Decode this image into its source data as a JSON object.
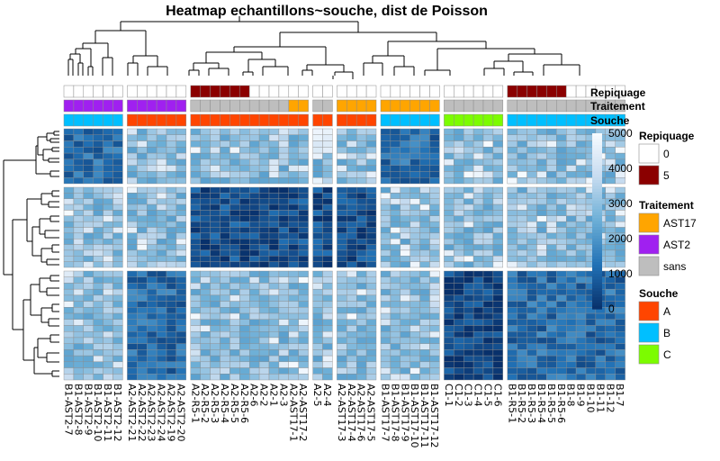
{
  "chart_data": {
    "type": "heatmap",
    "title": "Heatmap echantillons~souche, dist de Poisson",
    "colorbar": {
      "ticks": [
        5000,
        4000,
        3000,
        2000,
        1000,
        0
      ],
      "colors": [
        "#08306b",
        "#2171b5",
        "#6baed6",
        "#c6dbef",
        "#f7fbff"
      ]
    },
    "column_groups": [
      {
        "columns": [
          "B1-AST2-7",
          "B1-AST2-8",
          "B1-AST2-9",
          "B1-AST2-10",
          "B1-AST2-11",
          "B1-AST2-12"
        ],
        "repiquage": [
          "0",
          "0",
          "0",
          "0",
          "0",
          "0"
        ],
        "traitement": "AST2",
        "souche": "B"
      },
      {
        "columns": [
          "A2-AST2-21",
          "A2-AST2-22",
          "A2-AST2-23",
          "A2-AST2-24",
          "A2-AST2-19",
          "A2-AST2-20"
        ],
        "repiquage": [
          "0",
          "0",
          "0",
          "0",
          "0",
          "0"
        ],
        "traitement": "AST2",
        "souche": "A"
      },
      {
        "columns": [
          "A2-R5-1",
          "A2-R5-2",
          "A2-R5-3",
          "A2-R5-4",
          "A2-R5-5",
          "A2-R5-6",
          "A2-6",
          "A2-2",
          "A2-1",
          "A2-3",
          "A2-AST17-1",
          "A2-AST17-2"
        ],
        "repiquage": [
          "5",
          "5",
          "5",
          "5",
          "5",
          "5",
          "0",
          "0",
          "0",
          "0",
          "0",
          "0"
        ],
        "traitement": [
          "sans",
          "sans",
          "sans",
          "sans",
          "sans",
          "sans",
          "sans",
          "sans",
          "sans",
          "sans",
          "AST17",
          "AST17"
        ],
        "souche": "A"
      },
      {
        "columns": [
          "A2-5",
          "A2-4"
        ],
        "repiquage": [
          "0",
          "0"
        ],
        "traitement": "sans",
        "souche": "A"
      },
      {
        "columns": [
          "A2-AST17-3",
          "A2-AST17-4",
          "A2-AST17-6",
          "A2-AST17-5"
        ],
        "repiquage": [
          "0",
          "0",
          "0",
          "0"
        ],
        "traitement": "AST17",
        "souche": "A"
      },
      {
        "columns": [
          "B1-AST17-7",
          "B1-AST17-8",
          "B1-AST17-9",
          "B1-AST17-10",
          "B1-AST17-11",
          "B1-AST17-12"
        ],
        "repiquage": [
          "0",
          "0",
          "0",
          "0",
          "0",
          "0"
        ],
        "traitement": "AST17",
        "souche": "B"
      },
      {
        "columns": [
          "C1-1",
          "C1-2",
          "C1-3",
          "C1-4",
          "C1-5",
          "C1-6"
        ],
        "repiquage": [
          "0",
          "0",
          "0",
          "0",
          "0",
          "0"
        ],
        "traitement": "sans",
        "souche": "C"
      },
      {
        "columns": [
          "B1-R5-1",
          "B1-R5-2",
          "B1-R5-3",
          "B1-R5-4",
          "B1-R5-5",
          "B1-R5-6",
          "B1-8",
          "B1-9",
          "B1-10",
          "B1-11",
          "B1-12",
          "B1-7"
        ],
        "repiquage": [
          "5",
          "5",
          "5",
          "5",
          "5",
          "5",
          "0",
          "0",
          "0",
          "0",
          "0",
          "0"
        ],
        "traitement": "sans",
        "souche": "B"
      }
    ],
    "row_groups": [
      {
        "rows": 9,
        "similar_groups": [
          0,
          5
        ]
      },
      {
        "rows": 14,
        "similar_groups": [
          2,
          3,
          4
        ]
      },
      {
        "rows": 18,
        "similar_groups": [
          1,
          6,
          7
        ]
      }
    ]
  },
  "annotations": {
    "labels": [
      "Repiquage",
      "Traitement",
      "Souche"
    ],
    "colors": {
      "Repiquage": {
        "0": "#ffffff",
        "5": "#8b0000"
      },
      "Traitement": {
        "AST17": "#ffa500",
        "AST2": "#a020f0",
        "sans": "#bebebe"
      },
      "Souche": {
        "A": "#ff4500",
        "B": "#00bfff",
        "C": "#7cfc00"
      }
    }
  },
  "legends": [
    {
      "title": "Repiquage",
      "items": [
        {
          "label": "0",
          "color": "#ffffff"
        },
        {
          "label": "5",
          "color": "#8b0000"
        }
      ]
    },
    {
      "title": "Traitement",
      "items": [
        {
          "label": "AST17",
          "color": "#ffa500"
        },
        {
          "label": "AST2",
          "color": "#a020f0"
        },
        {
          "label": "sans",
          "color": "#bebebe"
        }
      ]
    },
    {
      "title": "Souche",
      "items": [
        {
          "label": "A",
          "color": "#ff4500"
        },
        {
          "label": "B",
          "color": "#00bfff"
        },
        {
          "label": "C",
          "color": "#7cfc00"
        }
      ]
    }
  ]
}
